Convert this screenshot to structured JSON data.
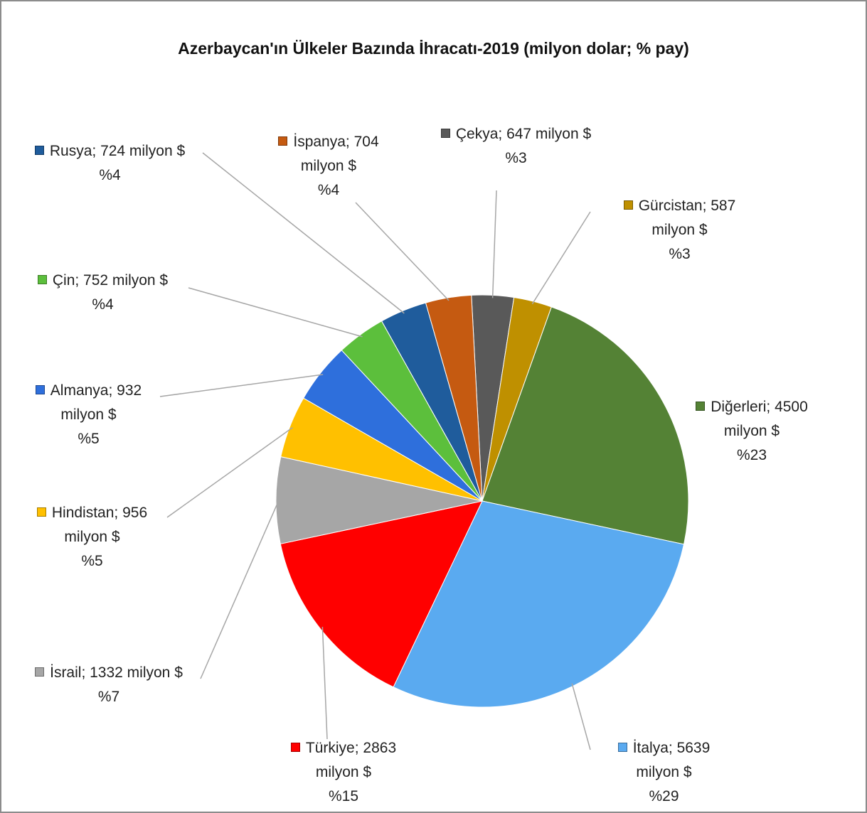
{
  "chart_data": {
    "type": "pie",
    "title": "Azerbaycan'ın Ülkeler Bazında İhracatı-2019 (milyon dolar; % pay)",
    "categories": [
      "Çekya",
      "Gürcistan",
      "Diğerleri",
      "İtalya",
      "Türkiye",
      "İsrail",
      "Hindistan",
      "Almanya",
      "Çin",
      "Rusya",
      "İspanya"
    ],
    "values": [
      647,
      587,
      4500,
      5639,
      2863,
      1332,
      956,
      932,
      752,
      724,
      704
    ],
    "value_labels": [
      "647 milyon $",
      "587 milyon $",
      "4500 milyon $",
      "5639 milyon $",
      "2863 milyon $",
      "1332 milyon $",
      "956 milyon $",
      "932 milyon $",
      "752 milyon $",
      "724 milyon $",
      "704 milyon $"
    ],
    "label_separator": "; ",
    "percent_labels": [
      "%3",
      "%3",
      "%23",
      "%29",
      "%15",
      "%7",
      "%5",
      "%5",
      "%4",
      "%4",
      "%4"
    ],
    "colors": [
      "#595959",
      "#bf9000",
      "#548235",
      "#5aaaf0",
      "#ff0000",
      "#a6a6a6",
      "#ffc000",
      "#2e6fdc",
      "#5cbf3c",
      "#1f5c9c",
      "#c55a11"
    ]
  }
}
